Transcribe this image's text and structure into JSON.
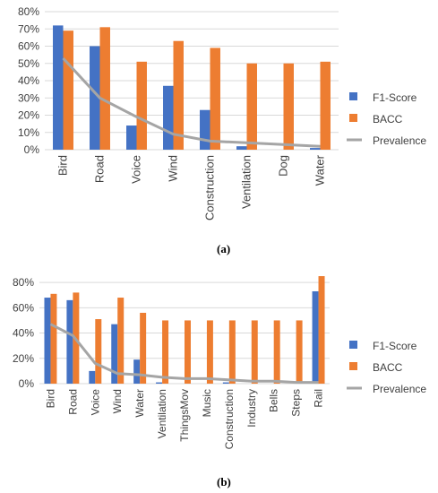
{
  "chart_data": [
    {
      "type": "bar",
      "panel_label": "(a)",
      "categories": [
        "Bird",
        "Road",
        "Voice",
        "Wind",
        "Construction",
        "Ventilation",
        "Dog",
        "Water"
      ],
      "series": [
        {
          "name": "F1-Score",
          "kind": "bar",
          "color": "#4472C4",
          "values": [
            72,
            60,
            14,
            37,
            23,
            2,
            0,
            1
          ]
        },
        {
          "name": "BACC",
          "kind": "bar",
          "color": "#ED7D31",
          "values": [
            69,
            71,
            51,
            63,
            59,
            50,
            50,
            51
          ]
        },
        {
          "name": "Prevalence",
          "kind": "line",
          "color": "#A5A5A5",
          "values": [
            53,
            30,
            19,
            9,
            5,
            4,
            3,
            2
          ]
        }
      ],
      "yticks": [
        "0%",
        "10%",
        "20%",
        "30%",
        "40%",
        "50%",
        "60%",
        "70%",
        "80%"
      ],
      "ylim": [
        0,
        80
      ],
      "grid": true,
      "legend": "right"
    },
    {
      "type": "bar",
      "panel_label": "(b)",
      "categories": [
        "Bird",
        "Road",
        "Voice",
        "Wind",
        "Water",
        "Ventilation",
        "ThingsMov",
        "Music",
        "Construction",
        "Industry",
        "Bells",
        "Steps",
        "Rail"
      ],
      "series": [
        {
          "name": "F1-Score",
          "kind": "bar",
          "color": "#4472C4",
          "values": [
            68,
            66,
            10,
            47,
            19,
            1,
            0,
            0,
            1,
            0,
            0,
            0,
            73
          ]
        },
        {
          "name": "BACC",
          "kind": "bar",
          "color": "#ED7D31",
          "values": [
            71,
            72,
            51,
            68,
            56,
            50,
            50,
            50,
            50,
            50,
            50,
            50,
            85
          ]
        },
        {
          "name": "Prevalence",
          "kind": "line",
          "color": "#A5A5A5",
          "values": [
            47,
            38,
            16,
            8,
            7,
            5,
            4,
            4,
            3,
            2,
            2,
            1,
            1
          ]
        }
      ],
      "yticks": [
        "0%",
        "20%",
        "40%",
        "60%",
        "80%"
      ],
      "ylim": [
        0,
        90
      ],
      "grid": true,
      "legend": "right"
    }
  ]
}
